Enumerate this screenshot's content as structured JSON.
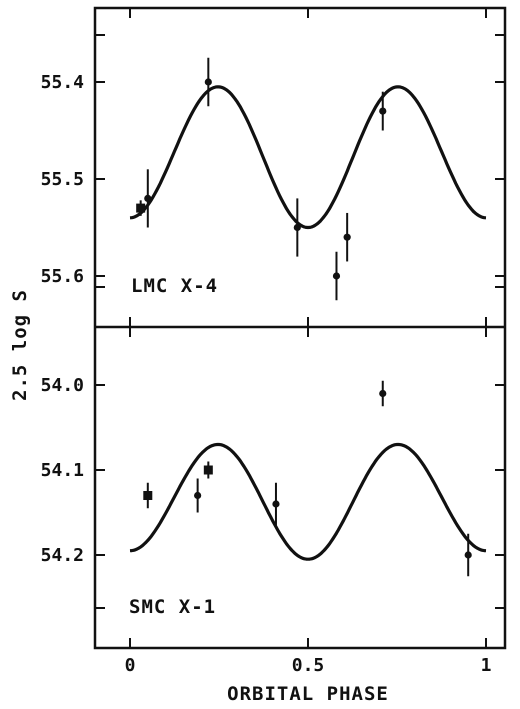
{
  "chart_data": [
    {
      "type": "scatter",
      "panel": "top",
      "annotation": "LMC X-4",
      "xlim": [
        0,
        1
      ],
      "ylim": [
        55.4,
        55.6
      ],
      "y_inverted": true,
      "y_ticks": [
        "55.4",
        "55.5",
        "55.6"
      ],
      "points": [
        {
          "x": 0.03,
          "y": 55.53,
          "err": 0.008,
          "marker": "square"
        },
        {
          "x": 0.05,
          "y": 55.52,
          "err": 0.03
        },
        {
          "x": 0.22,
          "y": 55.4,
          "err": 0.025
        },
        {
          "x": 0.47,
          "y": 55.55,
          "err": 0.03
        },
        {
          "x": 0.58,
          "y": 55.6,
          "err": 0.025
        },
        {
          "x": 0.61,
          "y": 55.56,
          "err": 0.025
        },
        {
          "x": 0.71,
          "y": 55.43,
          "err": 0.02
        }
      ],
      "model_curve": {
        "mean": 55.475,
        "amp_base": 0.07,
        "amp_phase": 0.005
      }
    },
    {
      "type": "scatter",
      "panel": "bottom",
      "annotation": "SMC X-1",
      "xlim": [
        0,
        1
      ],
      "ylim": [
        54.0,
        54.2
      ],
      "y_inverted": true,
      "y_ticks": [
        "54.0",
        "54.1",
        "54.2"
      ],
      "points": [
        {
          "x": 0.05,
          "y": 54.13,
          "err": 0.015,
          "marker": "square"
        },
        {
          "x": 0.19,
          "y": 54.13,
          "err": 0.02
        },
        {
          "x": 0.22,
          "y": 54.1,
          "err": 0.01,
          "marker": "square"
        },
        {
          "x": 0.41,
          "y": 54.14,
          "err": 0.025
        },
        {
          "x": 0.71,
          "y": 54.01,
          "err": 0.015
        },
        {
          "x": 0.95,
          "y": 54.2,
          "err": 0.025
        }
      ],
      "model_curve": {
        "mean": 54.135,
        "amp_base": 0.065,
        "amp_phase": 0.005
      }
    }
  ],
  "axes": {
    "xlabel": "ORBITAL PHASE",
    "ylabel": "2.5 log S",
    "x_ticks": [
      "0",
      "0.5",
      "1"
    ]
  },
  "colors": {
    "ink": "#111111",
    "background": "#ffffff"
  }
}
